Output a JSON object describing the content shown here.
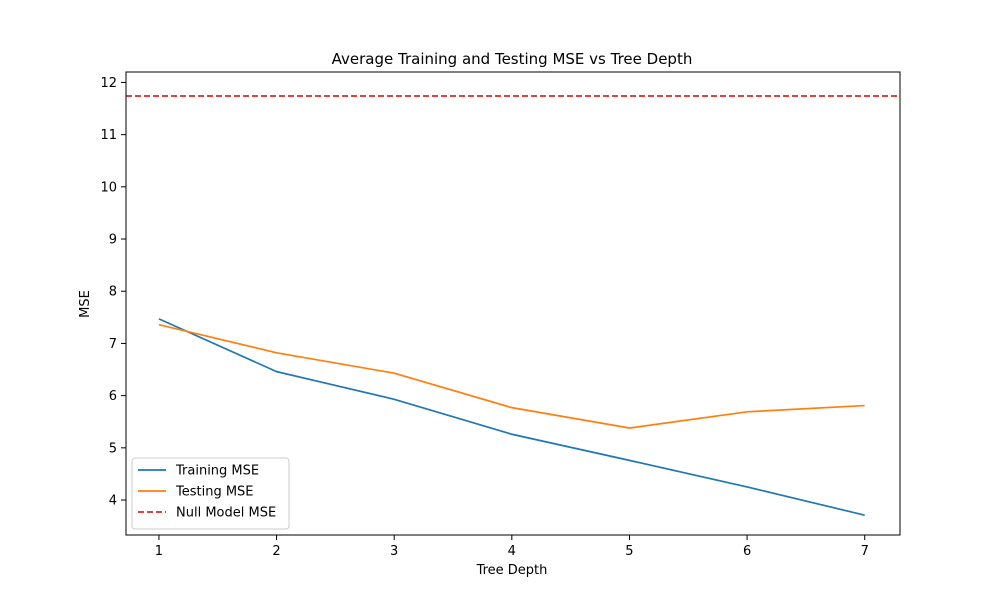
{
  "chart_data": {
    "type": "line",
    "title": "Average Training and Testing MSE vs Tree Depth",
    "xlabel": "Tree Depth",
    "ylabel": "MSE",
    "x": [
      1,
      2,
      3,
      4,
      5,
      6,
      7
    ],
    "xlim": [
      0.72,
      7.3
    ],
    "ylim": [
      3.33,
      12.2
    ],
    "xticks": [
      "1",
      "2",
      "3",
      "4",
      "5",
      "6",
      "7"
    ],
    "yticks": [
      "4",
      "5",
      "6",
      "7",
      "8",
      "9",
      "10",
      "11",
      "12"
    ],
    "grid": false,
    "legend_position": "lower-left",
    "series": [
      {
        "name": "Training MSE",
        "values": [
          7.47,
          6.46,
          5.93,
          5.26,
          4.76,
          4.25,
          3.71
        ],
        "color": "#1f77b4",
        "style": "solid"
      },
      {
        "name": "Testing MSE",
        "values": [
          7.36,
          6.82,
          6.43,
          5.77,
          5.38,
          5.69,
          5.81
        ],
        "color": "#ff7f0e",
        "style": "solid"
      }
    ],
    "reference_lines": [
      {
        "name": "Null Model MSE",
        "y": 11.74,
        "color": "#d62728",
        "style": "dashed",
        "orientation": "horizontal"
      }
    ]
  }
}
